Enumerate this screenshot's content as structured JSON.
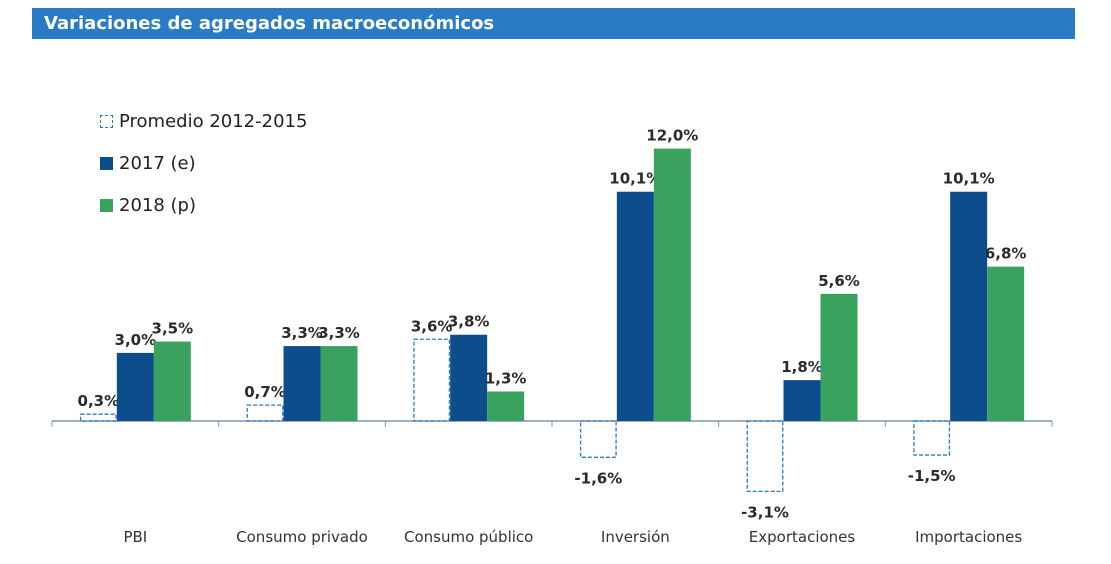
{
  "title": "Variaciones de agregados macroeconómicos",
  "colors": {
    "title_bg": "#2a7bc6",
    "series_promedio": "#2a7bc6",
    "series_2017": "#0e4d8c",
    "series_2018": "#3aa25f",
    "axis": "#7f96b2",
    "label_text": "#2b2b2b"
  },
  "legend": {
    "items": [
      {
        "label": "Promedio 2012-2015",
        "style": "dashed-outline"
      },
      {
        "label": "2017 (e)",
        "style": "solid-navy"
      },
      {
        "label": "2018 (p)",
        "style": "solid-green"
      }
    ]
  },
  "chart_data": {
    "type": "bar",
    "title": "Variaciones de agregados macroeconómicos",
    "xlabel": "",
    "ylabel": "",
    "ylim": [
      -4,
      13
    ],
    "grid": false,
    "legend_position": "top-left",
    "categories": [
      "PBI",
      "Consumo privado",
      "Consumo público",
      "Inversión",
      "Exportaciones",
      "Importaciones"
    ],
    "series": [
      {
        "name": "Promedio 2012-2015",
        "values": [
          0.3,
          0.7,
          3.6,
          -1.6,
          -3.1,
          -1.5
        ],
        "labels": [
          "0,3%",
          "0,7%",
          "3,6%",
          "-1,6%",
          "-3,1%",
          "-1,5%"
        ]
      },
      {
        "name": "2017 (e)",
        "values": [
          3.0,
          3.3,
          3.8,
          10.1,
          1.8,
          10.1
        ],
        "labels": [
          "3,0%",
          "3,3%",
          "3,8%",
          "10,1%",
          "1,8%",
          "10,1%"
        ]
      },
      {
        "name": "2018 (p)",
        "values": [
          3.5,
          3.3,
          1.3,
          12.0,
          5.6,
          6.8
        ],
        "labels": [
          "3,5%",
          "3,3%",
          "1,3%",
          "12,0%",
          "5,6%",
          "6,8%"
        ]
      }
    ]
  }
}
